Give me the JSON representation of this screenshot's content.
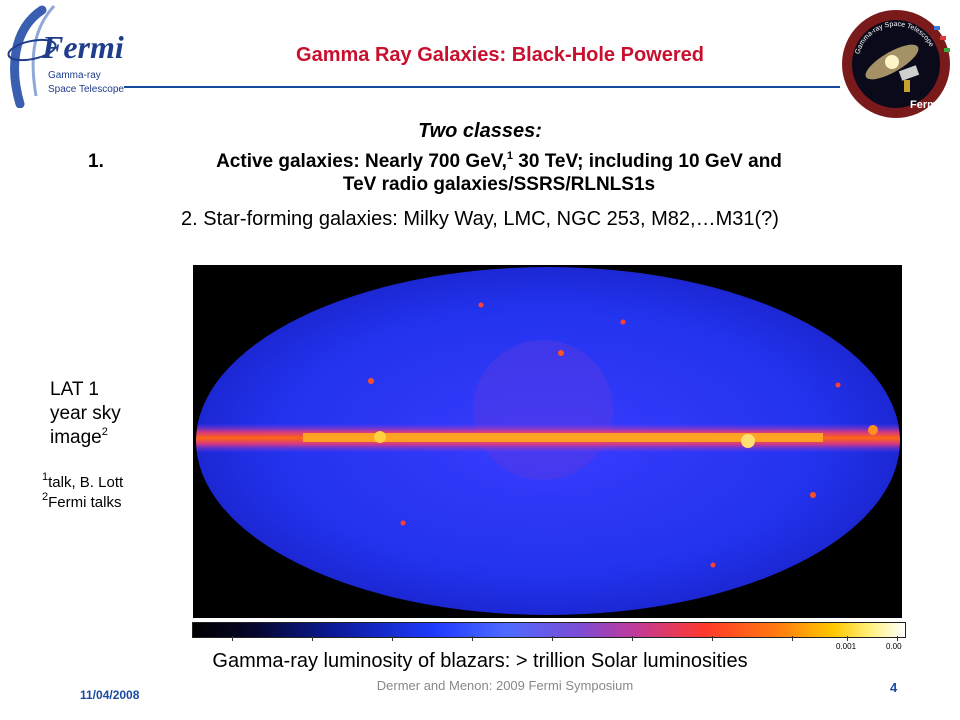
{
  "logo": {
    "brand": "Fermi",
    "subtitle_line1": "Gamma-ray",
    "subtitle_line2": "Space Telescope"
  },
  "title": "Gamma Ray Galaxies: Black-Hole Powered",
  "badge": {
    "ring_text_top": "Gamma-ray Space Telescope",
    "ring_text_bottom": "Fermi"
  },
  "classes_heading": "Two classes:",
  "class1": {
    "number": "1.",
    "text_a": "Active galaxies: Nearly 700 GeV,",
    "sup": "1",
    "text_b": " 30 TeV; including 10 GeV and",
    "line2": "TeV radio galaxies/SSRS/RLNLS1s"
  },
  "class2": "2. Star-forming galaxies: Milky Way, LMC, NGC 253, M82,…M31(?)",
  "lat_label": {
    "line1": "LAT 1",
    "line2": "year sky",
    "line3": "image",
    "sup": "2"
  },
  "footnotes": [
    {
      "sup": "1",
      "text": "talk, B. Lott"
    },
    {
      "sup": "2",
      "text": "Fermi talks"
    }
  ],
  "colorbar": {
    "tick1": "0.001",
    "tick2": "0.00"
  },
  "caption": "Gamma-ray luminosity of blazars: > trillion Solar luminosities",
  "footer": {
    "date": "11/04/2008",
    "center": "Dermer and Menon: 2009 Fermi Symposium",
    "page": "4"
  },
  "colors": {
    "title": "#c8102e",
    "accent": "#1a4aa0",
    "sky_background": "#2233ee",
    "galactic_plane": "#ff3a1a"
  }
}
